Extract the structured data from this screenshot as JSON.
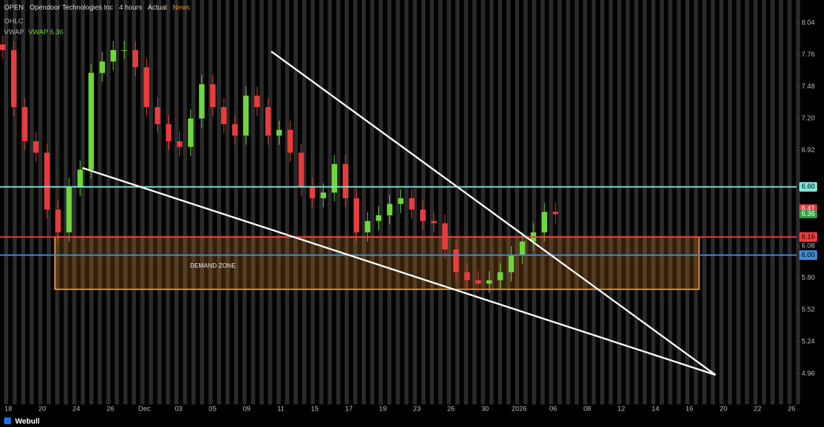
{
  "header": {
    "symbol": "OPEN",
    "name": "Opendoor Technologies Inc",
    "interval": "4 hours",
    "mode": "Actual",
    "news": "News",
    "ohlc": "OHLC",
    "vwap": "VWAP",
    "vwap_value": "VWAP 6.36"
  },
  "footer": {
    "brand": "Webull"
  },
  "chart_data": {
    "type": "candlestick",
    "ylim": [
      4.69,
      8.24
    ],
    "yticks": [
      8.04,
      7.76,
      7.48,
      {
        "value": 7.2,
        "label": "7.20"
      },
      6.92,
      6.08,
      {
        "value": 5.8,
        "label": "5.80"
      },
      5.52,
      5.24,
      4.96
    ],
    "x_labels": [
      "18",
      "20",
      "24",
      "26",
      "Dec",
      "03",
      "05",
      "09",
      "11",
      "15",
      "17",
      "19",
      "23",
      "26",
      "30",
      "2026",
      "06",
      "08",
      "12",
      "14",
      "16",
      "20",
      "22",
      "26"
    ],
    "up_color": "#6fd63c",
    "down_color": "#e83c3c",
    "open": [
      7.85,
      7.8,
      7.3,
      7.0,
      6.9,
      6.4,
      6.2,
      6.6,
      6.75,
      7.6,
      7.7,
      7.8,
      7.8,
      7.65,
      7.3,
      7.15,
      7.0,
      6.95,
      7.2,
      7.5,
      7.3,
      7.15,
      7.05,
      7.4,
      7.3,
      7.05,
      7.1,
      6.9,
      6.6,
      6.5,
      6.55,
      6.8,
      6.5,
      6.2,
      6.3,
      6.35,
      6.45,
      6.5,
      6.4,
      6.3,
      6.28,
      6.05,
      5.85,
      5.78,
      5.75,
      5.78,
      5.85,
      6.0,
      6.12,
      6.2,
      6.38
    ],
    "high": [
      7.93,
      7.88,
      7.38,
      7.08,
      6.98,
      6.48,
      6.68,
      6.83,
      7.68,
      7.78,
      7.88,
      7.88,
      7.88,
      7.73,
      7.38,
      7.23,
      7.08,
      7.28,
      7.58,
      7.58,
      7.38,
      7.23,
      7.48,
      7.48,
      7.38,
      7.18,
      7.18,
      6.98,
      6.68,
      6.63,
      6.88,
      6.88,
      6.58,
      6.38,
      6.43,
      6.53,
      6.58,
      6.58,
      6.48,
      6.38,
      6.36,
      6.13,
      5.93,
      5.86,
      5.86,
      5.93,
      6.08,
      6.2,
      6.28,
      6.46,
      6.46
    ],
    "low": [
      7.72,
      7.22,
      6.92,
      6.82,
      6.32,
      6.12,
      6.12,
      6.52,
      6.67,
      7.52,
      7.62,
      7.72,
      7.57,
      7.22,
      7.07,
      6.92,
      6.87,
      6.87,
      7.12,
      7.22,
      7.07,
      6.97,
      6.97,
      7.22,
      6.97,
      6.97,
      6.82,
      6.52,
      6.42,
      6.42,
      6.47,
      6.42,
      6.12,
      6.12,
      6.22,
      6.27,
      6.37,
      6.32,
      6.22,
      6.2,
      5.97,
      5.77,
      5.7,
      5.67,
      5.67,
      5.7,
      5.77,
      5.92,
      6.04,
      6.12,
      6.28
    ],
    "close": [
      7.8,
      7.3,
      7.0,
      6.9,
      6.4,
      6.2,
      6.6,
      6.75,
      7.6,
      7.7,
      7.8,
      7.8,
      7.65,
      7.3,
      7.15,
      7.0,
      6.95,
      7.2,
      7.5,
      7.3,
      7.15,
      7.05,
      7.4,
      7.3,
      7.05,
      7.1,
      6.9,
      6.6,
      6.5,
      6.55,
      6.8,
      6.5,
      6.2,
      6.3,
      6.35,
      6.45,
      6.5,
      6.4,
      6.3,
      6.28,
      6.05,
      5.85,
      5.78,
      5.75,
      5.78,
      5.85,
      6.0,
      6.12,
      6.2,
      6.38,
      6.36
    ],
    "zone": {
      "label": "DEMAND ZONE",
      "high": 6.16,
      "low": 5.7,
      "color": "#f08a24"
    },
    "levels": [
      {
        "value": 6.6,
        "label": "6.60",
        "color": "#7fe8d8"
      },
      {
        "value": 6.16,
        "color": "#f03c3c"
      },
      {
        "value": 6.0,
        "label": "6.00",
        "color": "#3b8fe0"
      }
    ],
    "price_tags": [
      {
        "value": 6.41,
        "color": "#e83c3c"
      },
      {
        "value": 6.36,
        "color": "#2f9e44"
      }
    ]
  }
}
